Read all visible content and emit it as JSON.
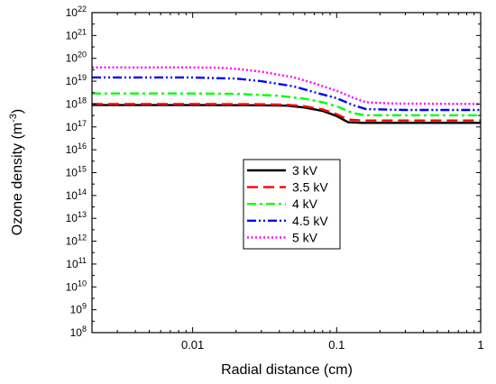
{
  "chart_data": {
    "type": "line",
    "xlabel": "Radial distance (cm)",
    "ylabel": "Ozone density (m",
    "ylabel_sup": "-3",
    "ylabel_end": ")",
    "xscale": "log",
    "yscale": "log",
    "xlim": [
      0.002,
      1
    ],
    "ylim": [
      100000000.0,
      1e+22
    ],
    "x_ticks": [
      {
        "value": 0.01,
        "label": "0.01"
      },
      {
        "value": 0.1,
        "label": "0.1"
      },
      {
        "value": 1,
        "label": "1"
      }
    ],
    "y_ticks": [
      {
        "exp": 8
      },
      {
        "exp": 9
      },
      {
        "exp": 10
      },
      {
        "exp": 11
      },
      {
        "exp": 12
      },
      {
        "exp": 13
      },
      {
        "exp": 14
      },
      {
        "exp": 15
      },
      {
        "exp": 16
      },
      {
        "exp": 17
      },
      {
        "exp": 18
      },
      {
        "exp": 19
      },
      {
        "exp": 20
      },
      {
        "exp": 21
      },
      {
        "exp": 22
      }
    ],
    "y_tick_base": "10",
    "grid": false,
    "legend_position": "center",
    "series": [
      {
        "name": "3 kV",
        "color": "#000000",
        "dash": "solid",
        "points": [
          [
            0.002,
            9e+17
          ],
          [
            0.01,
            9e+17
          ],
          [
            0.03,
            8.8e+17
          ],
          [
            0.045,
            8.5e+17
          ],
          [
            0.06,
            7e+17
          ],
          [
            0.08,
            5e+17
          ],
          [
            0.1,
            3e+17
          ],
          [
            0.12,
            1.6e+17
          ],
          [
            0.15,
            1.5e+17
          ],
          [
            0.3,
            1.5e+17
          ],
          [
            1,
            1.5e+17
          ]
        ]
      },
      {
        "name": "3.5 kV",
        "color": "#ff0000",
        "dash": "longdash",
        "points": [
          [
            0.002,
            1e+18
          ],
          [
            0.01,
            1e+18
          ],
          [
            0.03,
            9.8e+17
          ],
          [
            0.045,
            9.3e+17
          ],
          [
            0.06,
            8e+17
          ],
          [
            0.08,
            5.8e+17
          ],
          [
            0.1,
            3.6e+17
          ],
          [
            0.12,
            2.1e+17
          ],
          [
            0.15,
            1.9e+17
          ],
          [
            0.3,
            1.9e+17
          ],
          [
            1,
            1.9e+17
          ]
        ]
      },
      {
        "name": "4 kV",
        "color": "#00ff00",
        "dash": "dashdot",
        "points": [
          [
            0.002,
            2.9e+18
          ],
          [
            0.01,
            2.9e+18
          ],
          [
            0.02,
            2.8e+18
          ],
          [
            0.04,
            2.3e+18
          ],
          [
            0.06,
            1.7e+18
          ],
          [
            0.08,
            1.2e+18
          ],
          [
            0.1,
            8e+17
          ],
          [
            0.13,
            4e+17
          ],
          [
            0.16,
            3.2e+17
          ],
          [
            0.3,
            3.2e+17
          ],
          [
            1,
            3.2e+17
          ]
        ]
      },
      {
        "name": "4.5 kV",
        "color": "#0000ff",
        "dash": "dashdotdot",
        "points": [
          [
            0.002,
            1.45e+19
          ],
          [
            0.01,
            1.45e+19
          ],
          [
            0.02,
            1.3e+19
          ],
          [
            0.03,
            1e+19
          ],
          [
            0.05,
            6e+18
          ],
          [
            0.07,
            3.3e+18
          ],
          [
            0.1,
            1.8e+18
          ],
          [
            0.13,
            9e+17
          ],
          [
            0.16,
            6e+17
          ],
          [
            0.3,
            5.5e+17
          ],
          [
            1,
            5.5e+17
          ]
        ]
      },
      {
        "name": "5 kV",
        "color": "#ff00ff",
        "dash": "dot",
        "points": [
          [
            0.002,
            4e+19
          ],
          [
            0.01,
            4e+19
          ],
          [
            0.015,
            3.9e+19
          ],
          [
            0.02,
            3.5e+19
          ],
          [
            0.03,
            2.6e+19
          ],
          [
            0.05,
            1.5e+19
          ],
          [
            0.07,
            8e+18
          ],
          [
            0.1,
            3.8e+18
          ],
          [
            0.13,
            1.9e+18
          ],
          [
            0.16,
            1.2e+18
          ],
          [
            0.25,
            1.05e+18
          ],
          [
            1,
            1e+18
          ]
        ]
      }
    ]
  }
}
